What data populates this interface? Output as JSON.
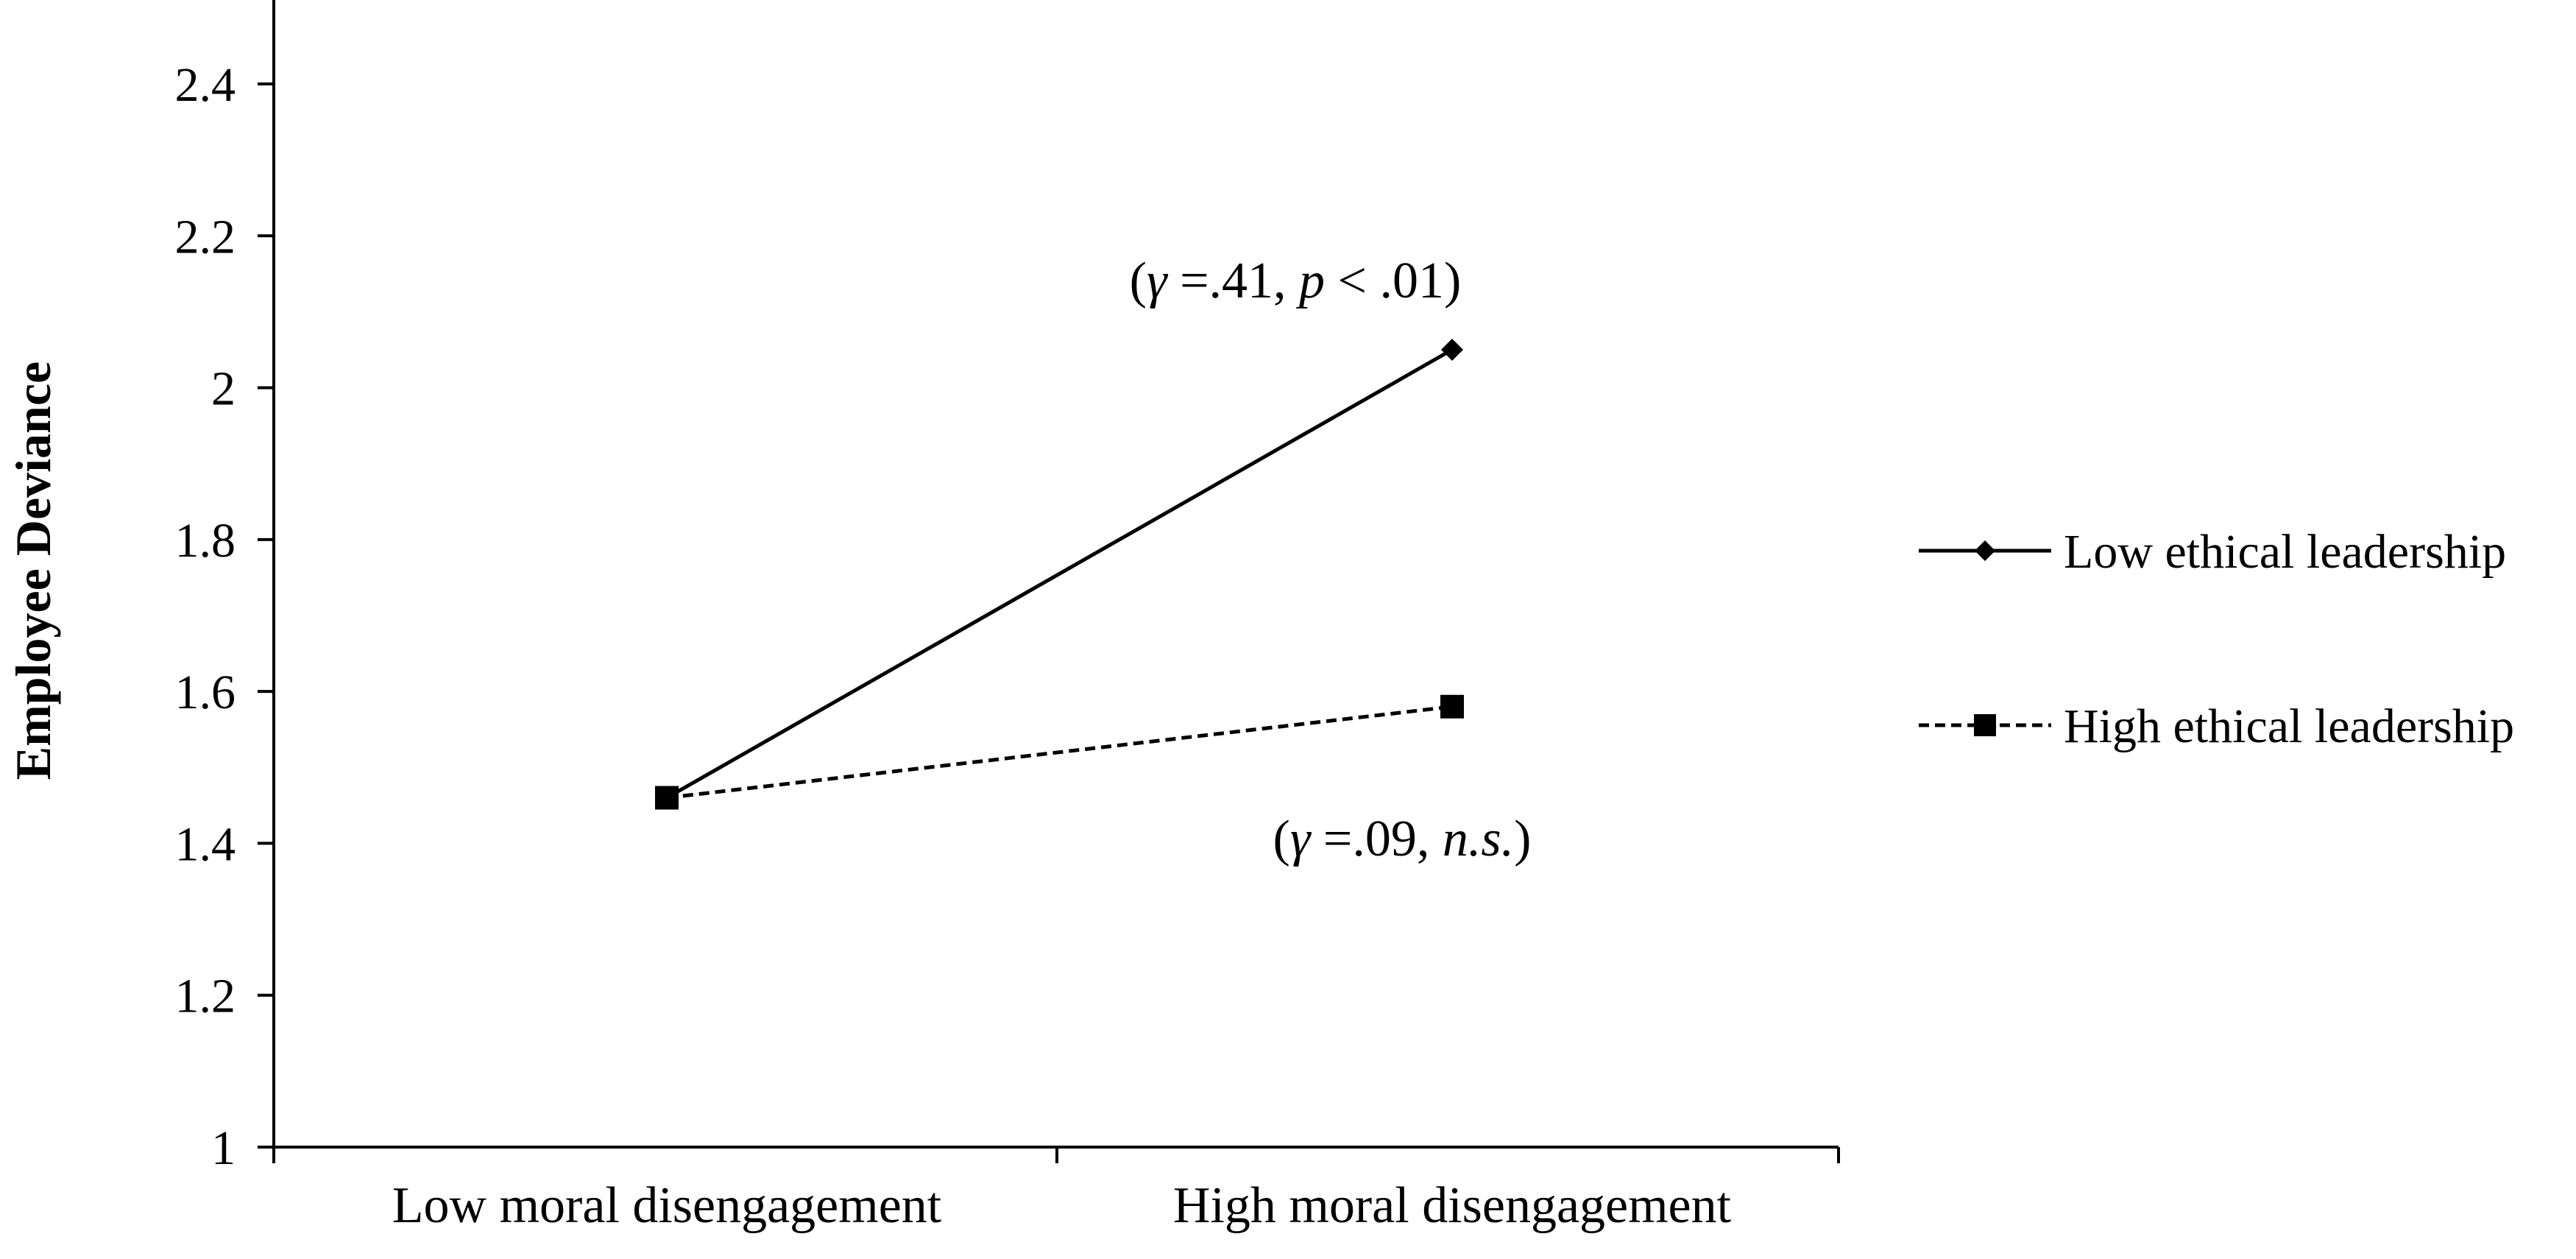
{
  "chart_data": {
    "type": "line",
    "title": "",
    "xlabel": "",
    "ylabel": "Employee Deviance",
    "categories": [
      "Low moral disengagement",
      "High moral disengagement"
    ],
    "ylim": [
      1,
      2.5
    ],
    "yticks": [
      1,
      1.2,
      1.4,
      1.6,
      1.8,
      2,
      2.2,
      2.4
    ],
    "ytick_labels": [
      "1",
      "1.2",
      "1.4",
      "1.6",
      "1.8",
      "2",
      "2.2",
      "2.4"
    ],
    "grid": false,
    "legend_position": "right",
    "series": [
      {
        "name": "Low ethical leadership",
        "values": [
          1.46,
          2.05
        ],
        "line_style": "solid",
        "marker": "diamond",
        "color": "#000000"
      },
      {
        "name": "High ethical leadership",
        "values": [
          1.46,
          1.58
        ],
        "line_style": "dashed",
        "marker": "square",
        "color": "#000000"
      }
    ],
    "annotations": [
      {
        "series": "Low ethical leadership",
        "parts": [
          {
            "text": "(",
            "italic": false
          },
          {
            "text": "γ",
            "italic": true
          },
          {
            "text": " =.41, ",
            "italic": false
          },
          {
            "text": "p",
            "italic": true
          },
          {
            "text": " < .01)",
            "italic": false
          }
        ]
      },
      {
        "series": "High ethical leadership",
        "parts": [
          {
            "text": "(",
            "italic": false
          },
          {
            "text": "γ",
            "italic": true
          },
          {
            "text": " =.09, ",
            "italic": false
          },
          {
            "text": "n.s.",
            "italic": true
          },
          {
            "text": ")",
            "italic": false
          }
        ]
      }
    ]
  }
}
